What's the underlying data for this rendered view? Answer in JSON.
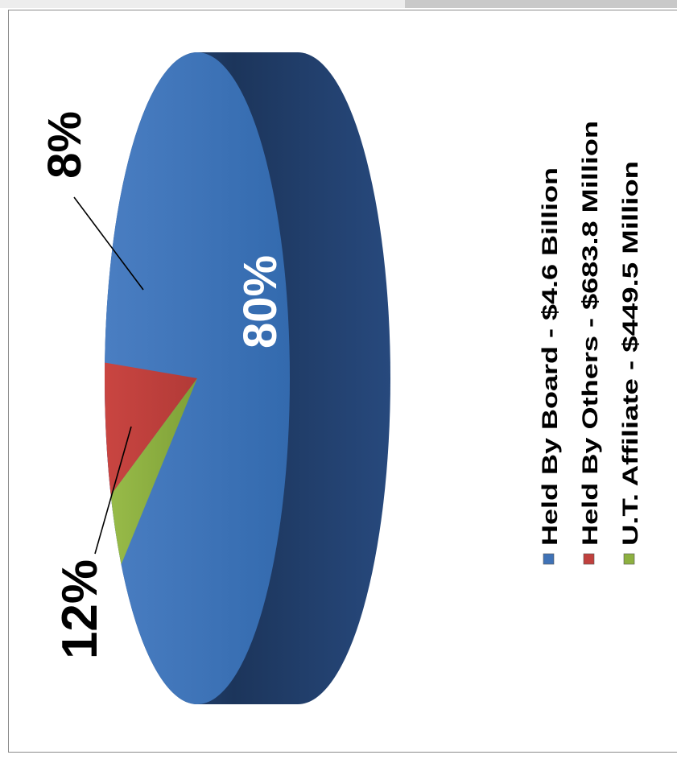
{
  "chart_data": {
    "type": "pie",
    "style": "3d-exploded-none-rotated-90deg",
    "categories": [
      "Held By Board",
      "Held By Others",
      "U.T. Affiliate"
    ],
    "values": [
      4600,
      683.8,
      449.5
    ],
    "percent_labels": [
      "80%",
      "12%",
      "8%"
    ],
    "percent_values": [
      80,
      12,
      8
    ],
    "legend": [
      {
        "text": "Held By Board - $4.6 Billion",
        "color": "#3f72b6"
      },
      {
        "text": "Held By Others - $683.8 Million",
        "color": "#c0403d"
      },
      {
        "text": "U.T. Affiliate - $449.5 Million",
        "color": "#8db040"
      }
    ],
    "colors": {
      "board_top": "#3f72b6",
      "board_side": "#203e66",
      "others_top": "#c0403d",
      "affiliate_top": "#8db040",
      "label_inside": "#ffffff",
      "label_outside": "#000000"
    },
    "legend_placement": "right"
  }
}
